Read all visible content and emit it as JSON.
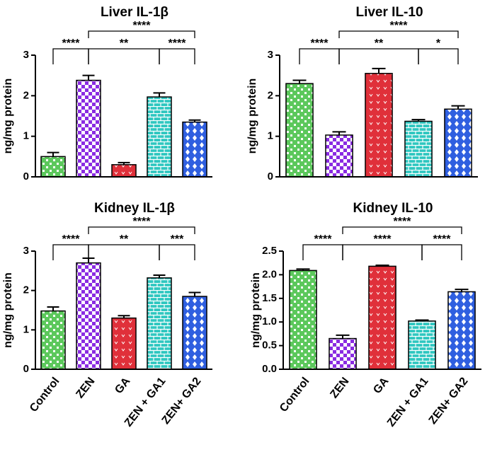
{
  "chart_data": [
    {
      "type": "bar",
      "title": "Liver IL-1β",
      "y_label": "ng/mg protein",
      "categories": [
        null,
        null,
        null,
        null,
        null
      ],
      "values": [
        0.5,
        2.38,
        0.3,
        1.97,
        1.35
      ],
      "errors": [
        0.1,
        0.12,
        0.05,
        0.1,
        0.05
      ],
      "colors": [
        "#5cc85c",
        "#8a2be2",
        "#e0303a",
        "#2fc7c0",
        "#2f5fe0"
      ],
      "ylim": [
        0,
        3
      ],
      "yticks": [
        0,
        1,
        2,
        3
      ],
      "comparisons": [
        {
          "from": 0,
          "to": 1,
          "label": "****"
        },
        {
          "from": 1,
          "to": 3,
          "label": "**"
        },
        {
          "from": 3,
          "to": 4,
          "label": "****"
        },
        {
          "from": 1,
          "to": 4,
          "label": "****"
        }
      ]
    },
    {
      "type": "bar",
      "title": "Liver IL-10",
      "y_label": "ng/mg protein",
      "categories": [
        null,
        null,
        null,
        null,
        null
      ],
      "values": [
        2.3,
        1.03,
        2.55,
        1.37,
        1.67
      ],
      "errors": [
        0.08,
        0.08,
        0.12,
        0.04,
        0.08
      ],
      "colors": [
        "#5cc85c",
        "#8a2be2",
        "#e0303a",
        "#2fc7c0",
        "#2f5fe0"
      ],
      "ylim": [
        0,
        3
      ],
      "yticks": [
        0,
        1,
        2,
        3
      ],
      "comparisons": [
        {
          "from": 0,
          "to": 1,
          "label": "****"
        },
        {
          "from": 1,
          "to": 3,
          "label": "**"
        },
        {
          "from": 3,
          "to": 4,
          "label": "*"
        },
        {
          "from": 1,
          "to": 4,
          "label": "****"
        }
      ]
    },
    {
      "type": "bar",
      "title": "Kidney IL-1β",
      "y_label": "ng/mg protein",
      "categories": [
        "Control",
        "ZEN",
        "GA",
        "ZEN + GA1",
        "ZEN+ GA2"
      ],
      "values": [
        1.48,
        2.7,
        1.3,
        2.32,
        1.85
      ],
      "errors": [
        0.1,
        0.12,
        0.06,
        0.07,
        0.1
      ],
      "colors": [
        "#5cc85c",
        "#8a2be2",
        "#e0303a",
        "#2fc7c0",
        "#2f5fe0"
      ],
      "ylim": [
        0,
        3
      ],
      "yticks": [
        0,
        1,
        2,
        3
      ],
      "comparisons": [
        {
          "from": 0,
          "to": 1,
          "label": "****"
        },
        {
          "from": 1,
          "to": 3,
          "label": "**"
        },
        {
          "from": 3,
          "to": 4,
          "label": "***"
        },
        {
          "from": 1,
          "to": 4,
          "label": "****"
        }
      ]
    },
    {
      "type": "bar",
      "title": "Kidney IL-10",
      "y_label": "ng/mg protein",
      "categories": [
        "Control",
        "ZEN",
        "GA",
        "ZEN + GA1",
        "ZEN+ GA2"
      ],
      "values": [
        2.09,
        0.65,
        2.18,
        1.02,
        1.64
      ],
      "errors": [
        0.03,
        0.07,
        0.02,
        0.02,
        0.05
      ],
      "colors": [
        "#5cc85c",
        "#8a2be2",
        "#e0303a",
        "#2fc7c0",
        "#2f5fe0"
      ],
      "ylim": [
        0,
        2.5
      ],
      "yticks": [
        {
          "value": 0,
          "label": "0.0"
        },
        {
          "value": 0.5,
          "label": "0.5"
        },
        {
          "value": 1,
          "label": "1.0"
        },
        {
          "value": 1.5,
          "label": "1.5"
        },
        {
          "value": 2,
          "label": "2.0"
        },
        {
          "value": 2.5,
          "label": "2.5"
        }
      ],
      "comparisons": [
        {
          "from": 0,
          "to": 1,
          "label": "****"
        },
        {
          "from": 1,
          "to": 3,
          "label": "****"
        },
        {
          "from": 3,
          "to": 4,
          "label": "****"
        },
        {
          "from": 1,
          "to": 4,
          "label": "****"
        }
      ]
    }
  ]
}
